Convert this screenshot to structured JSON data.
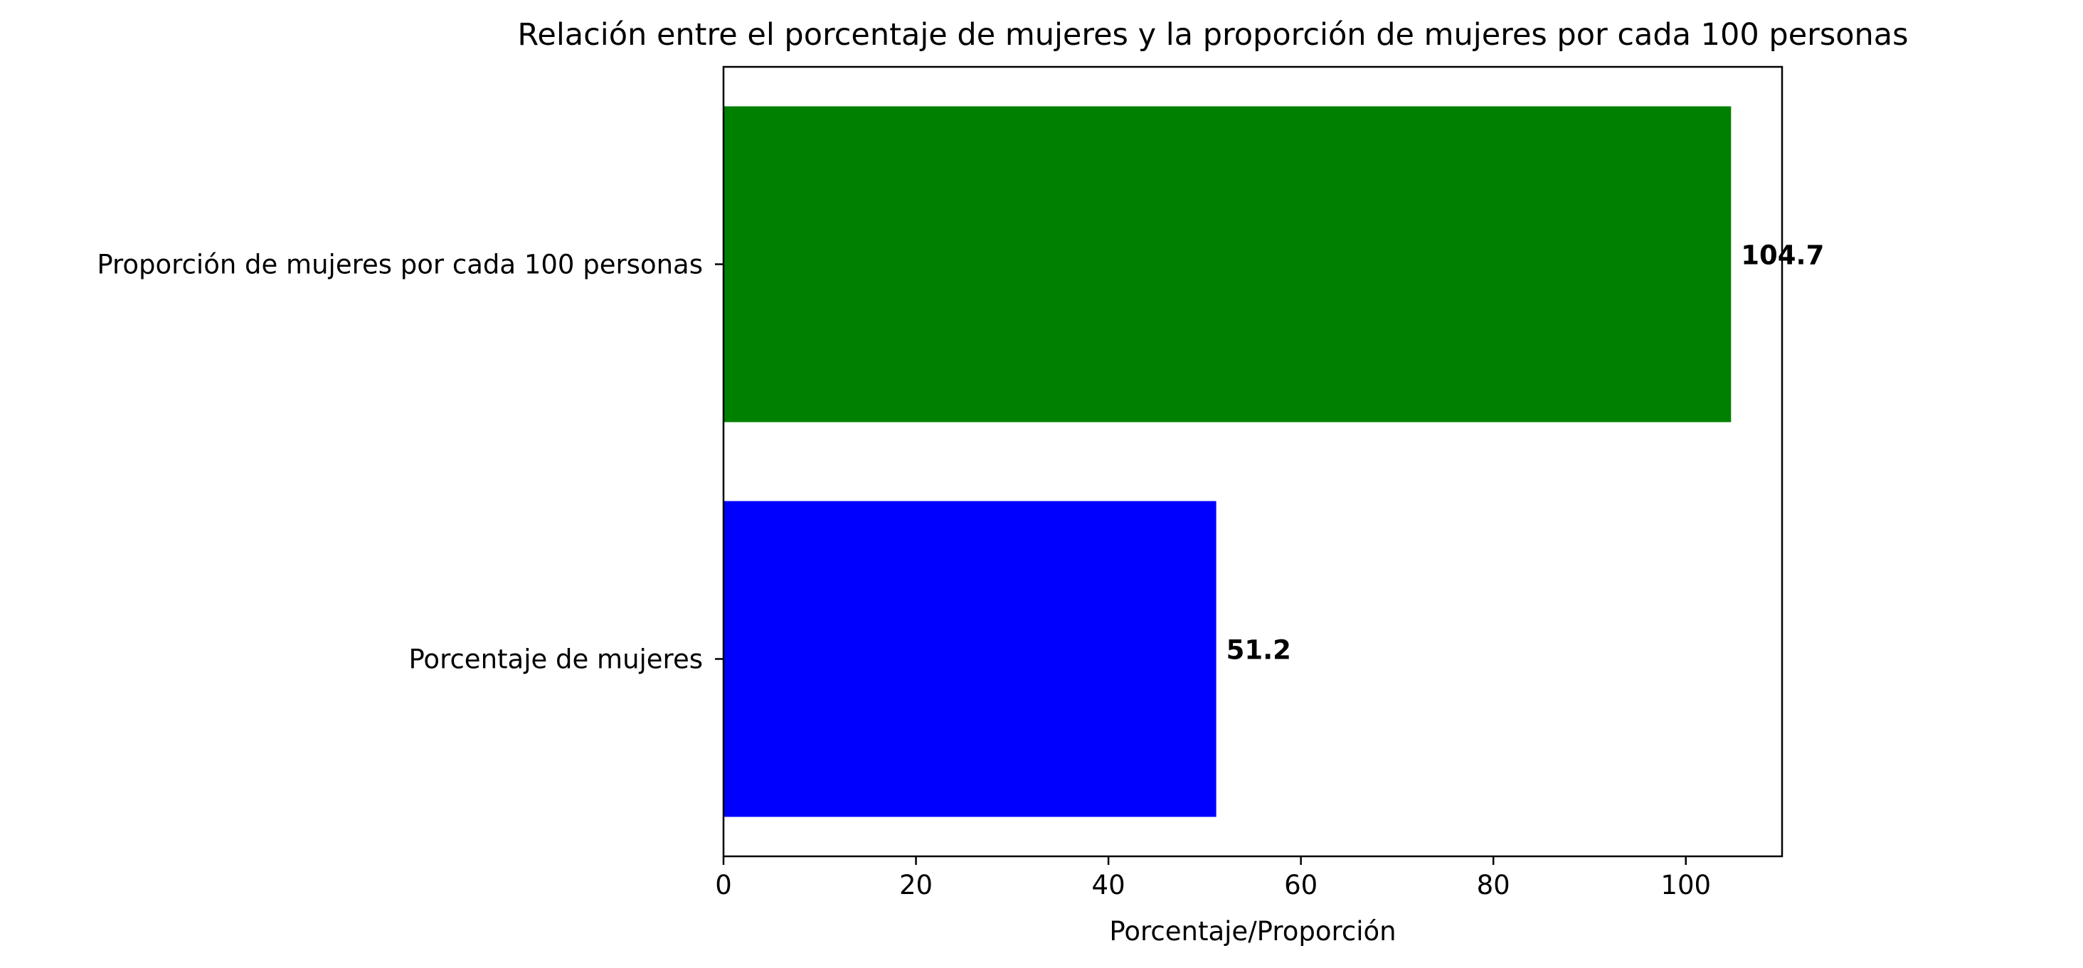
{
  "chart_data": {
    "type": "bar",
    "orientation": "horizontal",
    "title": "Relación entre el porcentaje de mujeres y la proporción de mujeres por cada 100 personas",
    "xlabel": "Porcentaje/Proporción",
    "ylabel": "",
    "categories": [
      "Porcentaje de mujeres",
      "Proporción de mujeres por cada 100 personas"
    ],
    "values": [
      51.2,
      104.7
    ],
    "value_labels": [
      "51.2",
      "104.7"
    ],
    "colors": [
      "#0000ff",
      "#008000"
    ],
    "xlim": [
      0,
      110
    ],
    "xticks": [
      0,
      20,
      40,
      60,
      80,
      100
    ],
    "xtick_labels": [
      "0",
      "20",
      "40",
      "60",
      "80",
      "100"
    ],
    "grid": false,
    "legend": false
  }
}
